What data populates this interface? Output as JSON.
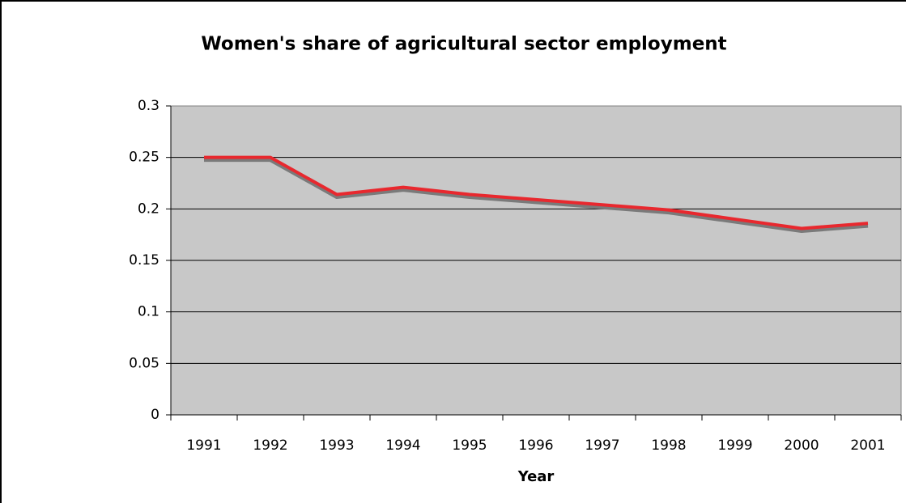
{
  "chart_data": {
    "type": "line",
    "title": "Women's share of agricultural sector employment",
    "x_label": "Year",
    "categories": [
      "1991",
      "1992",
      "1993",
      "1994",
      "1995",
      "1996",
      "1997",
      "1998",
      "1999",
      "2000",
      "2001"
    ],
    "series": [
      {
        "name": "Women's share",
        "color": "#e8282e",
        "values": [
          0.25,
          0.25,
          0.214,
          0.221,
          0.214,
          0.209,
          0.204,
          0.199,
          0.19,
          0.181,
          0.186
        ]
      }
    ],
    "ylim": [
      0,
      0.3
    ],
    "yticks": [
      0,
      0.05,
      0.1,
      0.15,
      0.2,
      0.25,
      0.3
    ],
    "grid": true
  }
}
